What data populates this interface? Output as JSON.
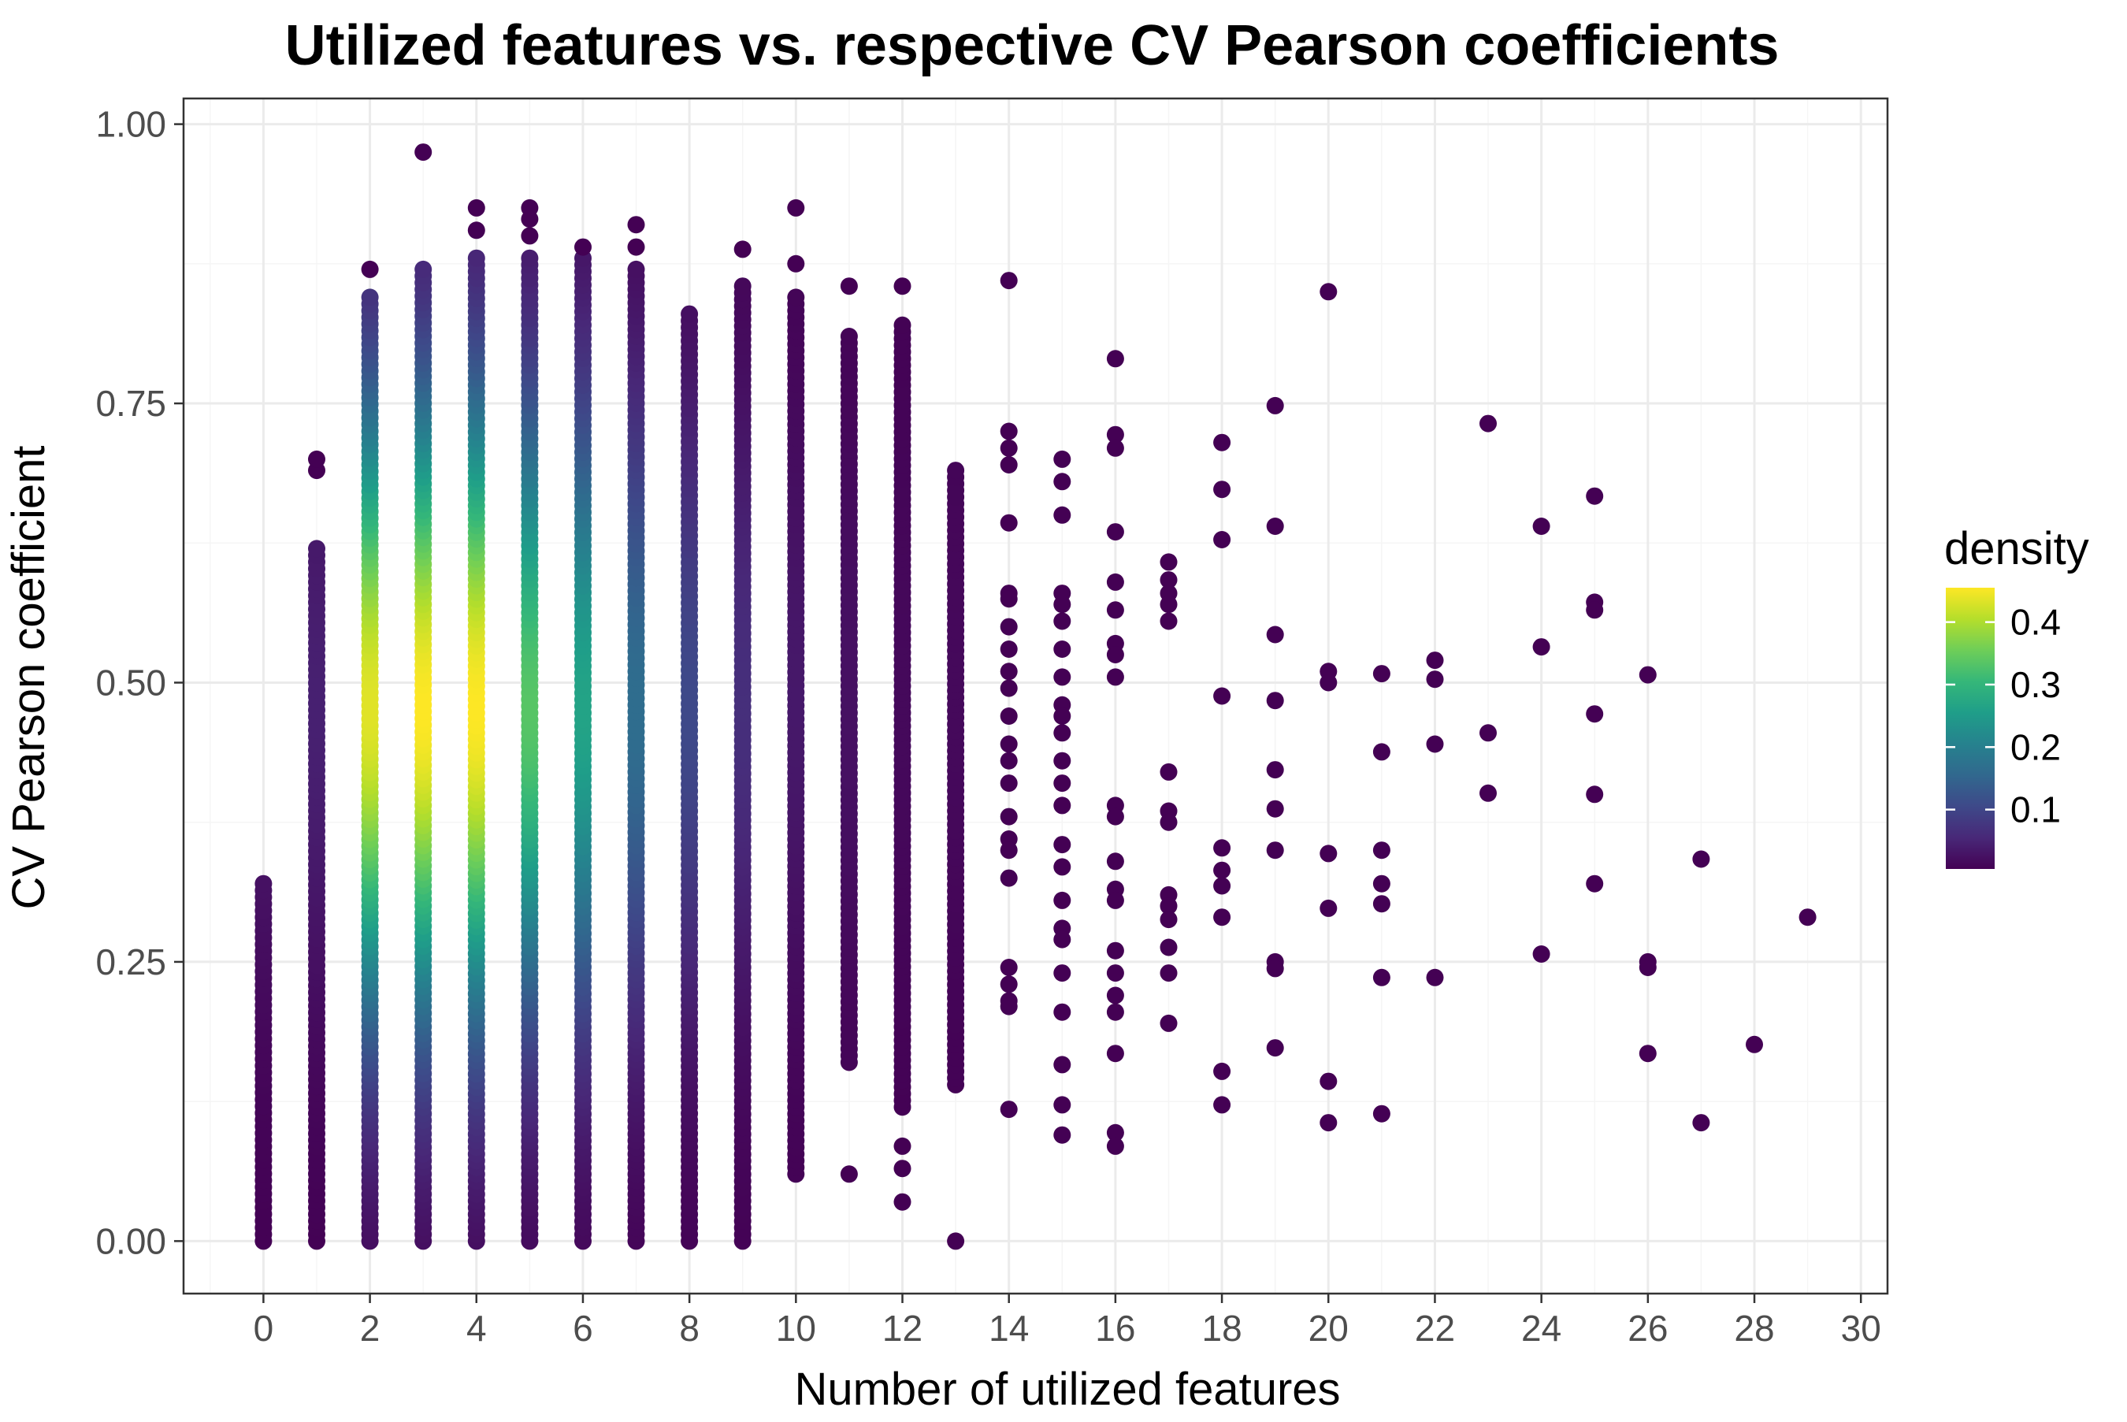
{
  "chart_data": {
    "type": "scatter",
    "title": "Utilized features vs. respective CV Pearson coefficients",
    "xlabel": "Number of utilized features",
    "ylabel": "CV Pearson coefficient",
    "xlim": [
      -1.5,
      30.5
    ],
    "ylim": [
      -0.047,
      1.023
    ],
    "x_ticks": [
      "0",
      "2",
      "4",
      "6",
      "8",
      "10",
      "12",
      "14",
      "16",
      "18",
      "20",
      "22",
      "24",
      "26",
      "28",
      "30"
    ],
    "y_ticks": [
      "0.00",
      "0.25",
      "0.50",
      "0.75",
      "1.00"
    ],
    "grid": true,
    "legend": {
      "title": "density",
      "position": "right",
      "labels": [
        "0.4",
        "0.3",
        "0.2",
        "0.1"
      ],
      "range": [
        0.0,
        0.45
      ],
      "colormap": "viridis"
    },
    "colors": {
      "viridis": [
        "#440154",
        "#482878",
        "#3e4989",
        "#31688e",
        "#26828e",
        "#1f9e89",
        "#35b779",
        "#6ece58",
        "#b5de2b",
        "#fde725"
      ],
      "panel_border": "#333333",
      "grid_major": "#ebebeb",
      "grid_minor": "#f5f5f5"
    },
    "dense_columns": [
      {
        "x": 0,
        "ymin": 0.0,
        "ymax": 0.32,
        "peak_density": 0.03,
        "extra": []
      },
      {
        "x": 1,
        "ymin": 0.0,
        "ymax": 0.62,
        "peak_density": 0.04,
        "extra": [
          0.69,
          0.7
        ]
      },
      {
        "x": 2,
        "ymin": 0.0,
        "ymax": 0.845,
        "peak_density": 0.43,
        "extra": [
          0.87
        ]
      },
      {
        "x": 3,
        "ymin": 0.0,
        "ymax": 0.87,
        "peak_density": 0.45,
        "extra": [
          0.975
        ]
      },
      {
        "x": 4,
        "ymin": 0.0,
        "ymax": 0.88,
        "peak_density": 0.45,
        "extra": [
          0.925,
          0.905
        ]
      },
      {
        "x": 5,
        "ymin": 0.0,
        "ymax": 0.88,
        "peak_density": 0.33,
        "extra": [
          0.925,
          0.915,
          0.9
        ]
      },
      {
        "x": 6,
        "ymin": 0.0,
        "ymax": 0.88,
        "peak_density": 0.26,
        "extra": [
          0.89
        ]
      },
      {
        "x": 7,
        "ymin": 0.0,
        "ymax": 0.87,
        "peak_density": 0.16,
        "extra": [
          0.91,
          0.89
        ]
      },
      {
        "x": 8,
        "ymin": 0.0,
        "ymax": 0.83,
        "peak_density": 0.1,
        "extra": []
      },
      {
        "x": 9,
        "ymin": 0.0,
        "ymax": 0.855,
        "peak_density": 0.06,
        "extra": [
          0.888
        ]
      },
      {
        "x": 10,
        "ymin": 0.06,
        "ymax": 0.845,
        "peak_density": 0.03,
        "extra": [
          0.925,
          0.875
        ]
      },
      {
        "x": 11,
        "ymin": 0.16,
        "ymax": 0.81,
        "peak_density": 0.02,
        "extra": [
          0.855,
          0.06
        ]
      },
      {
        "x": 12,
        "ymin": 0.12,
        "ymax": 0.82,
        "peak_density": 0.01,
        "extra": [
          0.855,
          0.085,
          0.065,
          0.035
        ]
      },
      {
        "x": 13,
        "ymin": 0.14,
        "ymax": 0.69,
        "peak_density": 0.01,
        "extra": [
          0.0
        ]
      }
    ],
    "points": [
      [
        14,
        0.86
      ],
      [
        14,
        0.725
      ],
      [
        14,
        0.71
      ],
      [
        14,
        0.695
      ],
      [
        14,
        0.643
      ],
      [
        14,
        0.58
      ],
      [
        14,
        0.575
      ],
      [
        14,
        0.55
      ],
      [
        14,
        0.53
      ],
      [
        14,
        0.51
      ],
      [
        14,
        0.495
      ],
      [
        14,
        0.47
      ],
      [
        14,
        0.445
      ],
      [
        14,
        0.43
      ],
      [
        14,
        0.41
      ],
      [
        14,
        0.38
      ],
      [
        14,
        0.36
      ],
      [
        14,
        0.35
      ],
      [
        14,
        0.325
      ],
      [
        14,
        0.245
      ],
      [
        14,
        0.23
      ],
      [
        14,
        0.215
      ],
      [
        14,
        0.21
      ],
      [
        14,
        0.118
      ],
      [
        15,
        0.7
      ],
      [
        15,
        0.68
      ],
      [
        15,
        0.65
      ],
      [
        15,
        0.58
      ],
      [
        15,
        0.57
      ],
      [
        15,
        0.555
      ],
      [
        15,
        0.53
      ],
      [
        15,
        0.505
      ],
      [
        15,
        0.48
      ],
      [
        15,
        0.47
      ],
      [
        15,
        0.455
      ],
      [
        15,
        0.43
      ],
      [
        15,
        0.41
      ],
      [
        15,
        0.39
      ],
      [
        15,
        0.355
      ],
      [
        15,
        0.335
      ],
      [
        15,
        0.305
      ],
      [
        15,
        0.28
      ],
      [
        15,
        0.27
      ],
      [
        15,
        0.24
      ],
      [
        15,
        0.205
      ],
      [
        15,
        0.158
      ],
      [
        15,
        0.122
      ],
      [
        15,
        0.095
      ],
      [
        16,
        0.79
      ],
      [
        16,
        0.722
      ],
      [
        16,
        0.71
      ],
      [
        16,
        0.635
      ],
      [
        16,
        0.59
      ],
      [
        16,
        0.565
      ],
      [
        16,
        0.535
      ],
      [
        16,
        0.525
      ],
      [
        16,
        0.505
      ],
      [
        16,
        0.39
      ],
      [
        16,
        0.38
      ],
      [
        16,
        0.34
      ],
      [
        16,
        0.315
      ],
      [
        16,
        0.305
      ],
      [
        16,
        0.26
      ],
      [
        16,
        0.24
      ],
      [
        16,
        0.22
      ],
      [
        16,
        0.205
      ],
      [
        16,
        0.168
      ],
      [
        16,
        0.097
      ],
      [
        16,
        0.085
      ],
      [
        17,
        0.608
      ],
      [
        17,
        0.592
      ],
      [
        17,
        0.58
      ],
      [
        17,
        0.57
      ],
      [
        17,
        0.555
      ],
      [
        17,
        0.42
      ],
      [
        17,
        0.385
      ],
      [
        17,
        0.375
      ],
      [
        17,
        0.31
      ],
      [
        17,
        0.3
      ],
      [
        17,
        0.288
      ],
      [
        17,
        0.263
      ],
      [
        17,
        0.24
      ],
      [
        17,
        0.195
      ],
      [
        18,
        0.715
      ],
      [
        18,
        0.673
      ],
      [
        18,
        0.628
      ],
      [
        18,
        0.488
      ],
      [
        18,
        0.352
      ],
      [
        18,
        0.332
      ],
      [
        18,
        0.318
      ],
      [
        18,
        0.29
      ],
      [
        18,
        0.152
      ],
      [
        18,
        0.122
      ],
      [
        19,
        0.748
      ],
      [
        19,
        0.64
      ],
      [
        19,
        0.543
      ],
      [
        19,
        0.484
      ],
      [
        19,
        0.422
      ],
      [
        19,
        0.387
      ],
      [
        19,
        0.35
      ],
      [
        19,
        0.25
      ],
      [
        19,
        0.244
      ],
      [
        19,
        0.173
      ],
      [
        20,
        0.85
      ],
      [
        20,
        0.51
      ],
      [
        20,
        0.5
      ],
      [
        20,
        0.347
      ],
      [
        20,
        0.298
      ],
      [
        20,
        0.143
      ],
      [
        20,
        0.106
      ],
      [
        21,
        0.508
      ],
      [
        21,
        0.438
      ],
      [
        21,
        0.35
      ],
      [
        21,
        0.32
      ],
      [
        21,
        0.302
      ],
      [
        21,
        0.236
      ],
      [
        21,
        0.114
      ],
      [
        22,
        0.52
      ],
      [
        22,
        0.503
      ],
      [
        22,
        0.445
      ],
      [
        22,
        0.236
      ],
      [
        23,
        0.732
      ],
      [
        23,
        0.455
      ],
      [
        23,
        0.401
      ],
      [
        24,
        0.64
      ],
      [
        24,
        0.532
      ],
      [
        24,
        0.257
      ],
      [
        25,
        0.667
      ],
      [
        25,
        0.572
      ],
      [
        25,
        0.565
      ],
      [
        25,
        0.472
      ],
      [
        25,
        0.4
      ],
      [
        25,
        0.32
      ],
      [
        26,
        0.507
      ],
      [
        26,
        0.25
      ],
      [
        26,
        0.245
      ],
      [
        26,
        0.168
      ],
      [
        27,
        0.342
      ],
      [
        27,
        0.106
      ],
      [
        28,
        0.176
      ],
      [
        29,
        0.29
      ]
    ]
  }
}
